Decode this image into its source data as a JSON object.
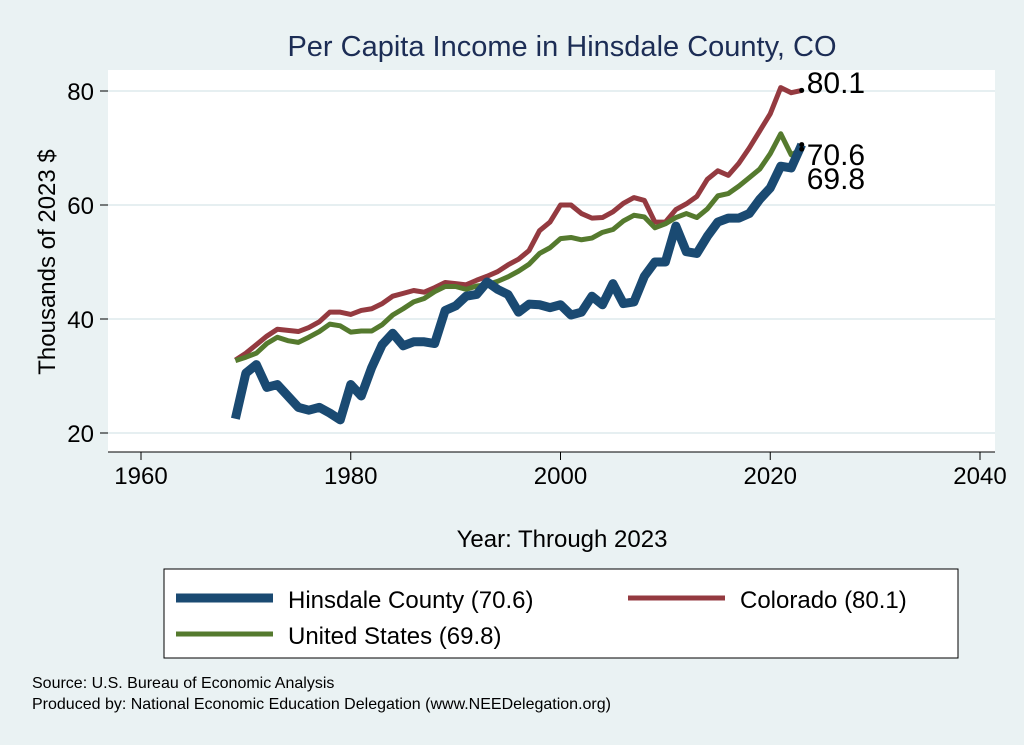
{
  "chart_data": {
    "type": "line",
    "title": "Per Capita Income in Hinsdale County, CO",
    "xlabel": "Year: Through 2023",
    "ylabel": "Thousands of 2023 $",
    "xlim": [
      1960,
      2040
    ],
    "ylim": [
      18,
      84
    ],
    "xticks": [
      1960,
      1980,
      2000,
      2020,
      2040
    ],
    "yticks": [
      20,
      40,
      60,
      80
    ],
    "grid": true,
    "legend_position": "bottom",
    "x": [
      1969,
      1970,
      1971,
      1972,
      1973,
      1974,
      1975,
      1976,
      1977,
      1978,
      1979,
      1980,
      1981,
      1982,
      1983,
      1984,
      1985,
      1986,
      1987,
      1988,
      1989,
      1990,
      1991,
      1992,
      1993,
      1994,
      1995,
      1996,
      1997,
      1998,
      1999,
      2000,
      2001,
      2002,
      2003,
      2004,
      2005,
      2006,
      2007,
      2008,
      2009,
      2010,
      2011,
      2012,
      2013,
      2014,
      2015,
      2016,
      2017,
      2018,
      2019,
      2020,
      2021,
      2022,
      2023
    ],
    "series": [
      {
        "name": "Hinsdale County (70.6)",
        "end_label": "70.6",
        "color": "#1a4a72",
        "width": 9,
        "values": [
          22.5,
          30.5,
          32,
          28,
          28.5,
          26.5,
          24.5,
          24,
          24.5,
          23.5,
          22.3,
          28.5,
          26.5,
          31.5,
          35.5,
          37.5,
          35.3,
          36,
          36,
          35.7,
          41.5,
          42.3,
          44,
          44.3,
          46.5,
          45.2,
          44.3,
          41.2,
          42.6,
          42.5,
          42,
          42.5,
          40.7,
          41.2,
          44,
          42.5,
          46.2,
          42.7,
          43,
          47.5,
          50,
          50,
          56.3,
          51.8,
          51.5,
          54.5,
          57,
          57.7,
          57.7,
          58.5,
          61,
          63,
          66.8,
          66.5,
          70.6
        ]
      },
      {
        "name": "Colorado (80.1)",
        "end_label": "80.1",
        "color": "#943a40",
        "width": 5,
        "values": [
          32.8,
          34,
          35.5,
          37,
          38.2,
          38,
          37.8,
          38.5,
          39.5,
          41.2,
          41.2,
          40.8,
          41.5,
          41.8,
          42.7,
          44,
          44.5,
          45,
          44.7,
          45.5,
          46.4,
          46.2,
          46,
          46.8,
          47.5,
          48.3,
          49.5,
          50.5,
          52,
          55.5,
          57,
          60,
          60,
          58.5,
          57.7,
          57.8,
          58.8,
          60.3,
          61.3,
          60.8,
          57,
          57,
          59.2,
          60.2,
          61.5,
          64.5,
          66,
          65.2,
          67.3,
          70,
          73,
          76,
          80.6,
          79.7,
          80.1
        ]
      },
      {
        "name": "United States (69.8)",
        "end_label": "69.8",
        "color": "#557a2e",
        "width": 5,
        "values": [
          32.7,
          33.3,
          34,
          35.7,
          36.8,
          36.2,
          35.9,
          36.8,
          37.8,
          39.1,
          38.8,
          37.7,
          37.9,
          37.9,
          39,
          40.7,
          41.8,
          43,
          43.6,
          44.8,
          45.7,
          45.7,
          45.2,
          45.8,
          46,
          46.6,
          47.4,
          48.4,
          49.6,
          51.5,
          52.5,
          54.1,
          54.3,
          53.9,
          54.2,
          55.2,
          55.7,
          57.2,
          58.2,
          57.9,
          56,
          56.7,
          57.8,
          58.5,
          57.8,
          59.3,
          61.6,
          62,
          63.3,
          64.8,
          66.3,
          69,
          72.5,
          68.8,
          69.8
        ]
      }
    ]
  },
  "notes": [
    "Source: U.S. Bureau of Economic Analysis",
    "Produced by: National Economic Education Delegation (www.NEEDelegation.org)"
  ]
}
